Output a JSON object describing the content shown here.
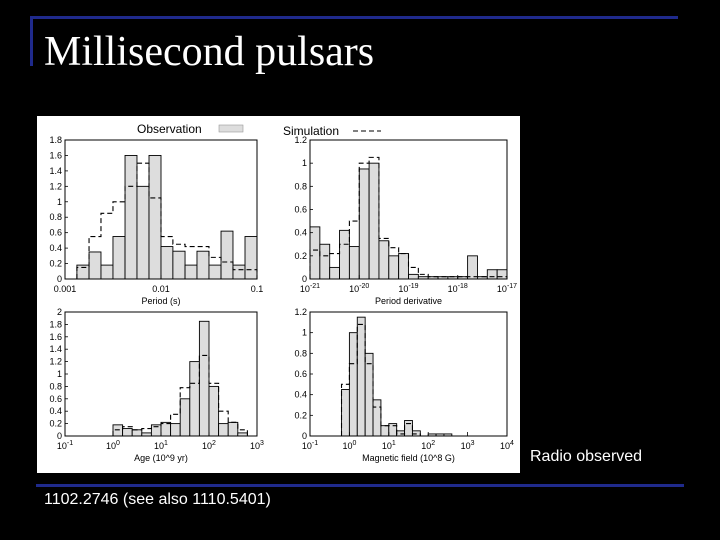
{
  "slide": {
    "title": "Millisecond pulsars",
    "caption": "Radio observed",
    "footer": "1102.2746 (see also 1110.5401)"
  },
  "colors": {
    "background": "#000000",
    "rule": "#1f2a8c",
    "observed_fill": "#dddddd"
  },
  "legend": {
    "observation": "Observation",
    "simulation": "Simulation"
  },
  "chart_data": [
    {
      "type": "bar",
      "xlabel": "Period (s)",
      "xscale": "log",
      "xlim": [
        0.001,
        0.1
      ],
      "ylim": [
        0,
        1.8
      ],
      "xticks": [
        {
          "v": 0.001,
          "label": "0.001"
        },
        {
          "v": 0.01,
          "label": "0.01"
        },
        {
          "v": 0.1,
          "label": "0.1"
        }
      ],
      "yticks": [
        {
          "v": 0,
          "label": "0"
        },
        {
          "v": 0.2,
          "label": "0.2"
        },
        {
          "v": 0.4,
          "label": "0.4"
        },
        {
          "v": 0.6,
          "label": "0.6"
        },
        {
          "v": 0.8,
          "label": "0.8"
        },
        {
          "v": 1,
          "label": "1"
        },
        {
          "v": 1.2,
          "label": "1.2"
        },
        {
          "v": 1.4,
          "label": "1.4"
        },
        {
          "v": 1.6,
          "label": "1.6"
        },
        {
          "v": 1.8,
          "label": "1.8"
        }
      ],
      "bin_edges": [
        0.00133,
        0.00178,
        0.00237,
        0.00316,
        0.00422,
        0.00562,
        0.0075,
        0.01,
        0.0133,
        0.0178,
        0.0237,
        0.0316,
        0.0422,
        0.0562,
        0.075,
        0.1
      ],
      "series": [
        {
          "name": "Observation",
          "values": [
            0.18,
            0.35,
            0.18,
            0.55,
            1.6,
            1.2,
            1.6,
            0.42,
            0.36,
            0.18,
            0.36,
            0.18,
            0.62,
            0.18,
            0.55
          ]
        },
        {
          "name": "Simulation",
          "values": [
            0.15,
            0.55,
            0.85,
            1.0,
            1.2,
            1.5,
            1.05,
            0.55,
            0.45,
            0.42,
            0.42,
            0.28,
            0.22,
            0.12,
            0.12
          ]
        }
      ]
    },
    {
      "type": "bar",
      "xlabel": "Period derivative",
      "xscale": "log",
      "xlim": [
        -21,
        -17
      ],
      "ylim": [
        0,
        1.2
      ],
      "xticks": [
        {
          "v": -21,
          "label": "10",
          "exp": "-21"
        },
        {
          "v": -20,
          "label": "10",
          "exp": "-20"
        },
        {
          "v": -19,
          "label": "10",
          "exp": "-19"
        },
        {
          "v": -18,
          "label": "10",
          "exp": "-18"
        },
        {
          "v": -17,
          "label": "10",
          "exp": "-17"
        }
      ],
      "yticks": [
        {
          "v": 0,
          "label": "0"
        },
        {
          "v": 0.2,
          "label": "0.2"
        },
        {
          "v": 0.4,
          "label": "0.4"
        },
        {
          "v": 0.6,
          "label": "0.6"
        },
        {
          "v": 0.8,
          "label": "0.8"
        },
        {
          "v": 1,
          "label": "1"
        },
        {
          "v": 1.2,
          "label": "1.2"
        }
      ],
      "bin_edges": [
        -21,
        -20.8,
        -20.6,
        -20.4,
        -20.2,
        -20,
        -19.8,
        -19.6,
        -19.4,
        -19.2,
        -19,
        -18.8,
        -18.6,
        -18.4,
        -18.2,
        -18,
        -17.8,
        -17.6,
        -17.4,
        -17.2,
        -17
      ],
      "series": [
        {
          "name": "Observation",
          "values": [
            0.45,
            0.3,
            0.1,
            0.42,
            0.28,
            0.95,
            1.0,
            0.33,
            0.2,
            0.22,
            0.04,
            0.02,
            0.02,
            0.02,
            0.02,
            0.02,
            0.2,
            0.02,
            0.08,
            0.08
          ]
        },
        {
          "name": "Simulation",
          "values": [
            0.25,
            0.2,
            0.22,
            0.3,
            0.5,
            1.0,
            1.05,
            0.35,
            0.27,
            0.22,
            0.1,
            0.04,
            0.02,
            0.02,
            0.02,
            0.02,
            0.02,
            0.02,
            0.02,
            0.02
          ]
        }
      ]
    },
    {
      "type": "bar",
      "xlabel": "Age (10^9 yr)",
      "xscale": "log",
      "xlim": [
        -1,
        3
      ],
      "ylim": [
        0,
        2.0
      ],
      "xticks": [
        {
          "v": -1,
          "label": "10",
          "exp": "-1"
        },
        {
          "v": 0,
          "label": "10",
          "exp": "0"
        },
        {
          "v": 1,
          "label": "10",
          "exp": "1"
        },
        {
          "v": 2,
          "label": "10",
          "exp": "2"
        },
        {
          "v": 3,
          "label": "10",
          "exp": "3"
        }
      ],
      "yticks": [
        {
          "v": 0,
          "label": "0"
        },
        {
          "v": 0.2,
          "label": "0.2"
        },
        {
          "v": 0.4,
          "label": "0.4"
        },
        {
          "v": 0.6,
          "label": "0.6"
        },
        {
          "v": 0.8,
          "label": "0.8"
        },
        {
          "v": 1,
          "label": "1"
        },
        {
          "v": 1.2,
          "label": "1.2"
        },
        {
          "v": 1.4,
          "label": "1.4"
        },
        {
          "v": 1.6,
          "label": "1.6"
        },
        {
          "v": 1.8,
          "label": "1.8"
        },
        {
          "v": 2,
          "label": "2"
        }
      ],
      "bin_edges": [
        -1,
        -0.8,
        -0.6,
        -0.4,
        -0.2,
        0,
        0.2,
        0.4,
        0.6,
        0.8,
        1,
        1.2,
        1.4,
        1.6,
        1.8,
        2,
        2.2,
        2.4,
        2.6,
        2.8,
        3
      ],
      "series": [
        {
          "name": "Observation",
          "values": [
            0,
            0,
            0,
            0,
            0,
            0.18,
            0.12,
            0.1,
            0.05,
            0.18,
            0.22,
            0.2,
            0.6,
            1.2,
            1.85,
            0.8,
            0.2,
            0.22,
            0.05,
            0
          ]
        },
        {
          "name": "Simulation",
          "values": [
            0,
            0,
            0,
            0,
            0,
            0.1,
            0.15,
            0.1,
            0.12,
            0.15,
            0.2,
            0.35,
            0.78,
            0.85,
            1.3,
            0.85,
            0.4,
            0.22,
            0.1,
            0
          ]
        }
      ]
    },
    {
      "type": "bar",
      "xlabel": "Magnetic field (10^8 G)",
      "xscale": "log",
      "xlim": [
        -1,
        4
      ],
      "ylim": [
        0,
        1.2
      ],
      "xticks": [
        {
          "v": -1,
          "label": "10",
          "exp": "-1"
        },
        {
          "v": 0,
          "label": "10",
          "exp": "0"
        },
        {
          "v": 1,
          "label": "10",
          "exp": "1"
        },
        {
          "v": 2,
          "label": "10",
          "exp": "2"
        },
        {
          "v": 3,
          "label": "10",
          "exp": "3"
        },
        {
          "v": 4,
          "label": "10",
          "exp": "4"
        }
      ],
      "yticks": [
        {
          "v": 0,
          "label": "0"
        },
        {
          "v": 0.2,
          "label": "0.2"
        },
        {
          "v": 0.4,
          "label": "0.4"
        },
        {
          "v": 0.6,
          "label": "0.6"
        },
        {
          "v": 0.8,
          "label": "0.8"
        },
        {
          "v": 1,
          "label": "1"
        },
        {
          "v": 1.2,
          "label": "1.2"
        }
      ],
      "bin_edges": [
        -0.2,
        0,
        0.2,
        0.4,
        0.6,
        0.8,
        1,
        1.2,
        1.4,
        1.6,
        1.8,
        2,
        2.2,
        2.4,
        2.6,
        2.8
      ],
      "series": [
        {
          "name": "Observation",
          "values": [
            0.45,
            1.0,
            1.15,
            0.8,
            0.35,
            0.1,
            0.12,
            0.05,
            0.15,
            0.05,
            0,
            0.02,
            0.02,
            0.02,
            0
          ]
        },
        {
          "name": "Simulation",
          "values": [
            0.5,
            0.7,
            1.08,
            0.7,
            0.28,
            0.1,
            0.1,
            0.02,
            0.12,
            0.02,
            0,
            0,
            0,
            0,
            0
          ]
        }
      ]
    }
  ]
}
